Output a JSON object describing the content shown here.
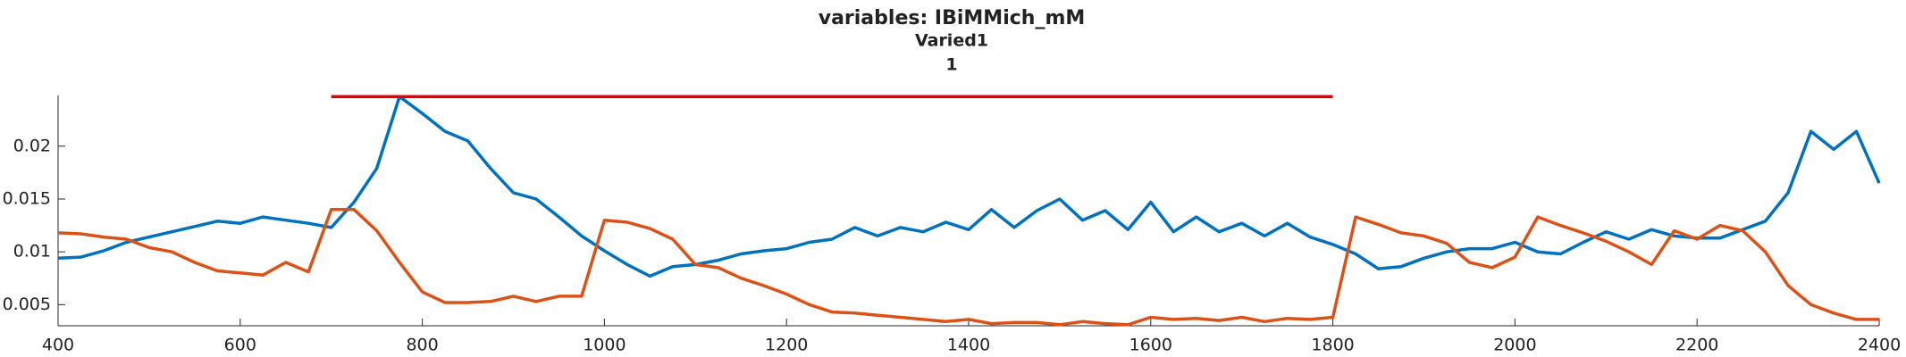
{
  "chart_data": {
    "type": "line",
    "title": [
      "variables: IBiMMich_mM",
      "Varied1",
      "1"
    ],
    "x": [
      400,
      425,
      450,
      475,
      500,
      525,
      550,
      575,
      600,
      625,
      650,
      675,
      700,
      725,
      750,
      775,
      800,
      825,
      850,
      875,
      900,
      925,
      950,
      975,
      1000,
      1025,
      1050,
      1075,
      1100,
      1125,
      1150,
      1175,
      1200,
      1225,
      1250,
      1275,
      1300,
      1325,
      1350,
      1375,
      1400,
      1425,
      1450,
      1475,
      1500,
      1525,
      1550,
      1575,
      1600,
      1625,
      1650,
      1675,
      1700,
      1725,
      1750,
      1775,
      1800,
      1825,
      1850,
      1875,
      1900,
      1925,
      1950,
      1975,
      2000,
      2025,
      2050,
      2075,
      2100,
      2125,
      2150,
      2175,
      2200,
      2225,
      2250,
      2275,
      2300,
      2325,
      2350,
      2375,
      2400
    ],
    "series": [
      {
        "color": "#0072bd",
        "values": [
          0.0094,
          0.0095,
          0.0101,
          0.0109,
          0.0114,
          0.0119,
          0.0124,
          0.0129,
          0.0127,
          0.0133,
          0.013,
          0.0127,
          0.0123,
          0.0147,
          0.0179,
          0.0247,
          0.0231,
          0.0214,
          0.0205,
          0.0179,
          0.0156,
          0.015,
          0.0133,
          0.0115,
          0.0101,
          0.0088,
          0.0077,
          0.0086,
          0.0088,
          0.0092,
          0.0098,
          0.0101,
          0.0103,
          0.0109,
          0.0112,
          0.0123,
          0.0115,
          0.0123,
          0.0119,
          0.0128,
          0.0121,
          0.014,
          0.0123,
          0.0139,
          0.015,
          0.013,
          0.0139,
          0.0121,
          0.0147,
          0.0119,
          0.0133,
          0.0119,
          0.0127,
          0.0115,
          0.0127,
          0.0114,
          0.0107,
          0.0098,
          0.0084,
          0.0086,
          0.0094,
          0.01,
          0.0103,
          0.0103,
          0.0109,
          0.01,
          0.0098,
          0.0109,
          0.0119,
          0.0112,
          0.0121,
          0.0115,
          0.0113,
          0.0113,
          0.0121,
          0.0129,
          0.0156,
          0.0214,
          0.0197,
          0.0214,
          0.0165
        ]
      },
      {
        "color": "#d95319",
        "values": [
          0.0118,
          0.0117,
          0.0114,
          0.0112,
          0.0104,
          0.01,
          0.009,
          0.0082,
          0.008,
          0.0078,
          0.009,
          0.0081,
          0.014,
          0.014,
          0.012,
          0.009,
          0.0062,
          0.0052,
          0.0052,
          0.0053,
          0.0058,
          0.0053,
          0.0058,
          0.0058,
          0.013,
          0.0128,
          0.0122,
          0.0112,
          0.0088,
          0.0085,
          0.0075,
          0.0068,
          0.006,
          0.005,
          0.0043,
          0.0042,
          0.004,
          0.0038,
          0.0036,
          0.0034,
          0.0036,
          0.0032,
          0.0033,
          0.0033,
          0.0031,
          0.0034,
          0.0032,
          0.0031,
          0.0038,
          0.0036,
          0.0037,
          0.0035,
          0.0038,
          0.0034,
          0.0037,
          0.0036,
          0.0038,
          0.0133,
          0.0126,
          0.0118,
          0.0115,
          0.0108,
          0.009,
          0.0085,
          0.0095,
          0.0133,
          0.0125,
          0.0118,
          0.011,
          0.01,
          0.0088,
          0.012,
          0.0112,
          0.0125,
          0.012,
          0.01,
          0.0068,
          0.005,
          0.0042,
          0.0036,
          0.0036
        ]
      },
      {
        "color": "#e00000",
        "x": [
          700,
          1800
        ],
        "values": [
          0.0247,
          0.0247
        ]
      }
    ],
    "xlim": [
      400,
      2400
    ],
    "xticks": [
      400,
      600,
      800,
      1000,
      1200,
      1400,
      1600,
      1800,
      2000,
      2200,
      2400
    ],
    "ylim": [
      0.003,
      0.0248
    ],
    "yticks": [
      0.005,
      0.01,
      0.015,
      0.02
    ],
    "grid": false
  }
}
